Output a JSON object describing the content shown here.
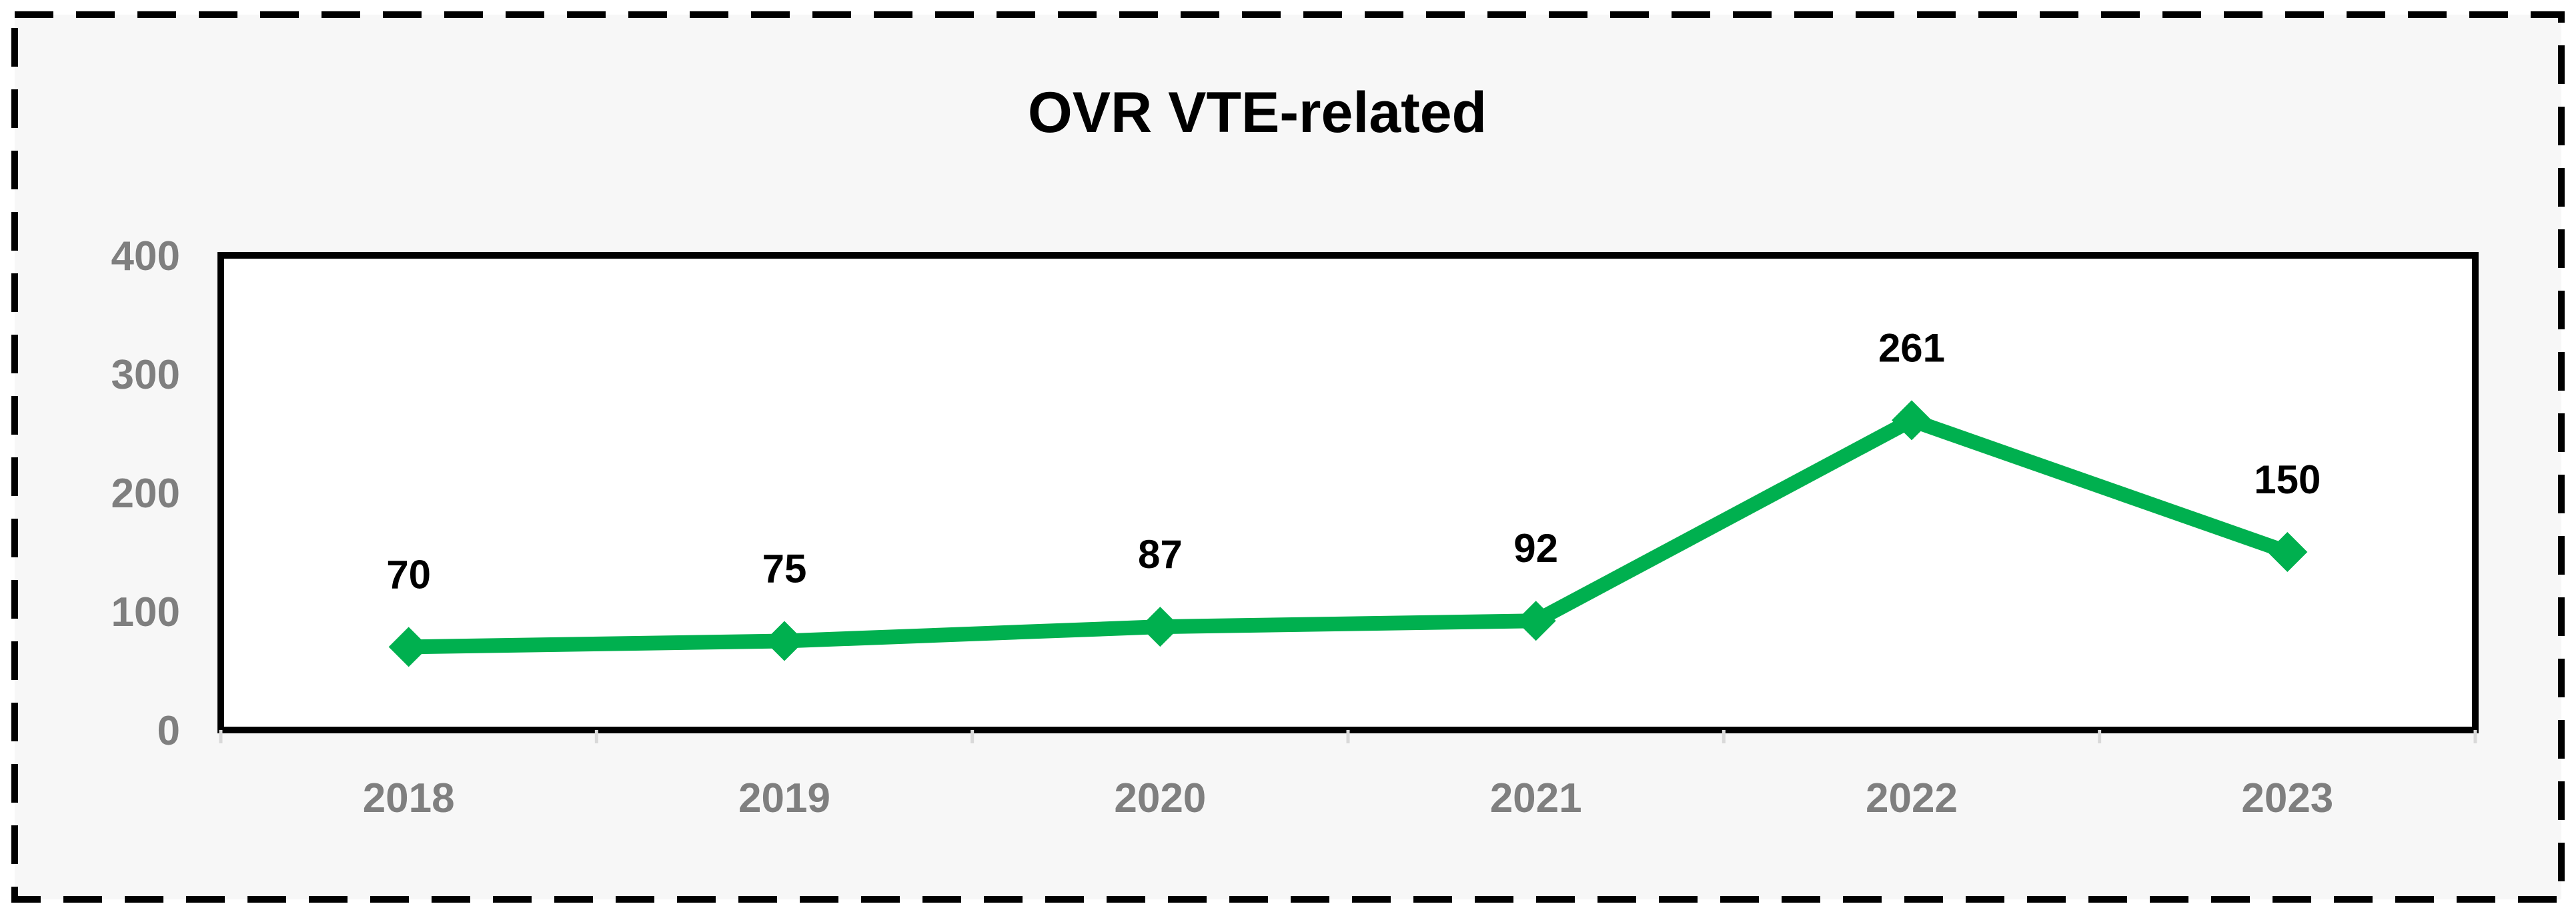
{
  "chart_data": {
    "type": "line",
    "title": "OVR VTE-related",
    "xlabel": "",
    "ylabel": "",
    "categories": [
      "2018",
      "2019",
      "2020",
      "2021",
      "2022",
      "2023"
    ],
    "series": [
      {
        "values": [
          70,
          75,
          87,
          92,
          261,
          150
        ],
        "color": "#00b04f",
        "marker": "diamond",
        "data_labels": [
          "70",
          "75",
          "87",
          "92",
          "261",
          "150"
        ]
      }
    ],
    "ylim": [
      0,
      400
    ],
    "y_ticks": [
      0,
      100,
      200,
      300,
      400
    ],
    "y_tick_labels": [
      "0",
      "100",
      "200",
      "300",
      "400"
    ],
    "grid": false,
    "legend": "none",
    "colors": {
      "line": "#00b04f",
      "axis_text": "#7f7f7f",
      "title_text": "#000000",
      "plot_border": "#000000",
      "background": "#f7f7f7"
    }
  }
}
